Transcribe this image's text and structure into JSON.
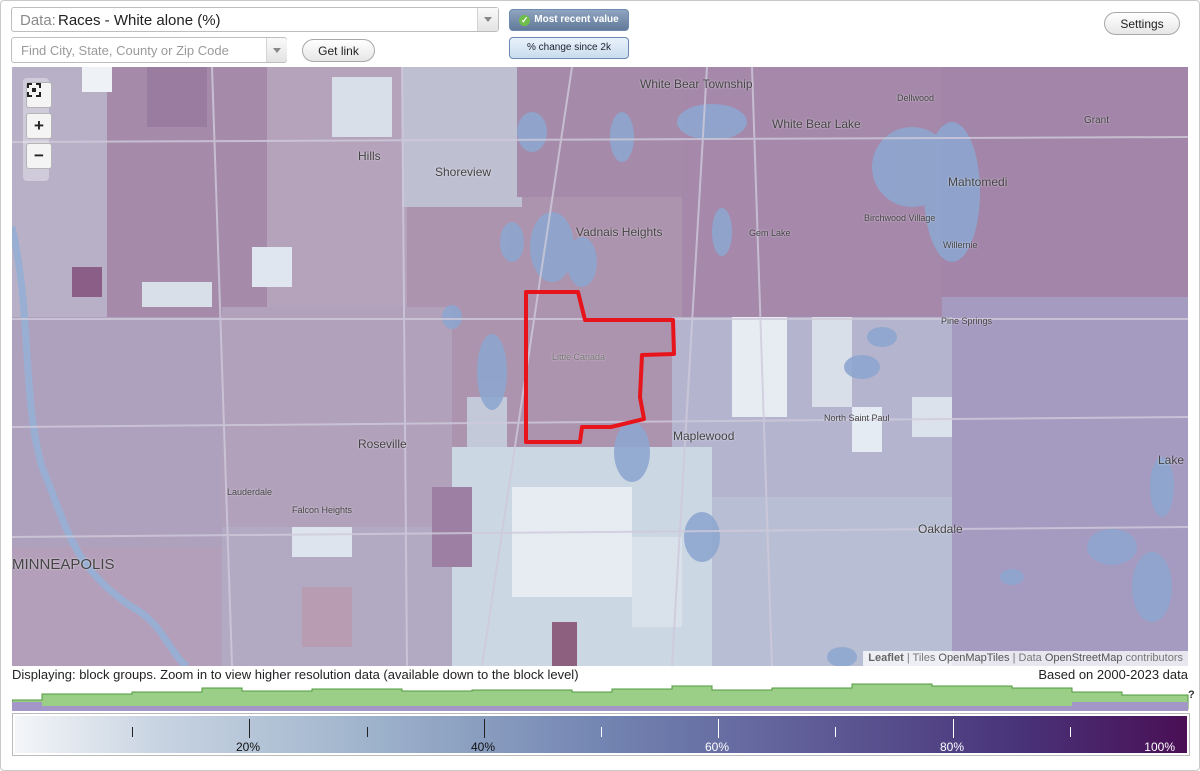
{
  "data_select": {
    "prefix": "Data:",
    "value": "Races - White alone (%)"
  },
  "search": {
    "placeholder": "Find City, State, County or Zip Code",
    "value": ""
  },
  "buttons": {
    "get_link": "Get link",
    "settings": "Settings"
  },
  "mode": {
    "most_recent": "Most recent value",
    "change_since": "% change since 2k"
  },
  "zoom": {
    "zoom_in": "+",
    "zoom_out": "−"
  },
  "map": {
    "place_labels": [
      {
        "id": "white-bear-township",
        "text": "White Bear Township"
      },
      {
        "id": "dellwood",
        "text": "Dellwood"
      },
      {
        "id": "white-bear-lake",
        "text": "White Bear Lake"
      },
      {
        "id": "grant",
        "text": "Grant"
      },
      {
        "id": "hills",
        "text": "Hills"
      },
      {
        "id": "shoreview",
        "text": "Shoreview"
      },
      {
        "id": "mahtomedi",
        "text": "Mahtomedi"
      },
      {
        "id": "vadnais-heights",
        "text": "Vadnais Heights"
      },
      {
        "id": "birchwood-village",
        "text": "Birchwood Village"
      },
      {
        "id": "gem-lake",
        "text": "Gem Lake"
      },
      {
        "id": "willernie",
        "text": "Willernie"
      },
      {
        "id": "pine-springs",
        "text": "Pine Springs"
      },
      {
        "id": "little-canada",
        "text": "Little Canada"
      },
      {
        "id": "north-saint-paul",
        "text": "North Saint Paul"
      },
      {
        "id": "maplewood",
        "text": "Maplewood"
      },
      {
        "id": "roseville",
        "text": "Roseville"
      },
      {
        "id": "lake",
        "text": "Lake"
      },
      {
        "id": "lauderdale",
        "text": "Lauderdale"
      },
      {
        "id": "falcon-heights",
        "text": "Falcon Heights"
      },
      {
        "id": "oakdale",
        "text": "Oakdale"
      },
      {
        "id": "minneapolis",
        "text": "MINNEAPOLIS"
      }
    ],
    "attribution": {
      "leaflet": "Leaflet",
      "sep1": " | Tiles ",
      "tiles": "OpenMapTiles",
      "sep2": " | Data ",
      "data": "OpenStreetMap",
      "tail": " contributors"
    }
  },
  "footer": {
    "displaying": "Displaying: block groups. Zoom in to view higher resolution data (available down to the block level)",
    "based_on": "Based on 2000-2023 data",
    "help": "?"
  },
  "legend": {
    "labels": [
      "20%",
      "40%",
      "60%",
      "80%",
      "100%"
    ],
    "scale_min": 0,
    "scale_max": 100,
    "major_ticks": [
      20,
      40,
      60,
      80
    ],
    "minor_ticks": [
      10,
      30,
      50,
      70,
      90
    ]
  },
  "colors": {
    "highlight_boundary": "#e8141b",
    "water": "#8ea6cf",
    "legend_low": "#f4f6f8",
    "legend_high": "#4a0f55"
  }
}
